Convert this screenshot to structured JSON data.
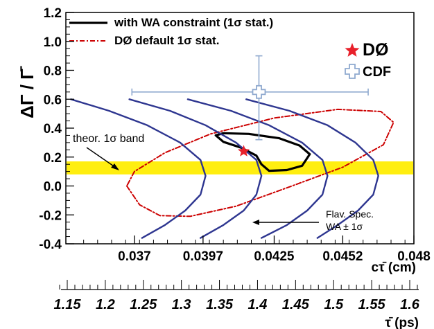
{
  "chart_data": {
    "type": "line",
    "x_axis": {
      "label": "cτ̄ (cm)",
      "range": [
        0.0343,
        0.048
      ],
      "ticks": [
        "0.037",
        "0.0397",
        "0.0425",
        "0.0452",
        "0.048"
      ],
      "tick_values": [
        0.037,
        0.0397,
        0.0425,
        0.0452,
        0.048
      ]
    },
    "secondary_x_axis": {
      "label": "τ̄ (ps)",
      "ticks": [
        "1.15",
        "1.2",
        "1.25",
        "1.3",
        "1.35",
        "1.4",
        "1.45",
        "1.5",
        "1.55",
        "1.6"
      ],
      "tick_values": [
        1.15,
        1.2,
        1.25,
        1.3,
        1.35,
        1.4,
        1.45,
        1.5,
        1.55,
        1.6
      ]
    },
    "y_axis": {
      "label": "ΔΓ / Γ̄",
      "range": [
        -0.4,
        1.2
      ],
      "ticks": [
        "-0.4",
        "-0.2",
        "0.0",
        "0.2",
        "0.4",
        "0.6",
        "0.8",
        "1.0",
        "1.2"
      ],
      "tick_values": [
        -0.4,
        -0.2,
        0.0,
        0.2,
        0.4,
        0.6,
        0.8,
        1.0,
        1.2
      ]
    },
    "legend": {
      "placement": "top-left",
      "entries": [
        {
          "label": "with WA constraint (1σ stat.)",
          "color": "#000000",
          "style": "solid"
        },
        {
          "label": "DØ default 1σ stat.",
          "color": "#cc0000",
          "style": "dash-dot"
        }
      ]
    },
    "markers": [
      {
        "label": "DØ",
        "symbol": "star",
        "color": "#e8202a",
        "x": 0.0413,
        "y": 0.24
      },
      {
        "label": "CDF",
        "symbol": "open-cross",
        "color": "#8fa9cf",
        "x": 0.0419,
        "y": 0.65,
        "x_err": [
          0.0369,
          0.0462
        ],
        "y_err": [
          0.32,
          0.9
        ]
      }
    ],
    "theory_band": {
      "label": "theor. 1σ band",
      "y_range": [
        0.08,
        0.17
      ],
      "color": "#ffee10"
    },
    "flavor_spec_annotation": [
      "Flav. Spec.",
      "WA ± 1σ"
    ],
    "series": [
      {
        "name": "with WA constraint (1σ stat.)",
        "color": "#000000",
        "points": [
          [
            0.0402,
            0.35
          ],
          [
            0.0405,
            0.305
          ],
          [
            0.0412,
            0.265
          ],
          [
            0.0418,
            0.21
          ],
          [
            0.042,
            0.15
          ],
          [
            0.0423,
            0.105
          ],
          [
            0.043,
            0.11
          ],
          [
            0.0436,
            0.14
          ],
          [
            0.0439,
            0.22
          ],
          [
            0.0435,
            0.28
          ],
          [
            0.0427,
            0.33
          ],
          [
            0.0415,
            0.36
          ],
          [
            0.0405,
            0.365
          ],
          [
            0.0402,
            0.35
          ]
        ]
      },
      {
        "name": "DØ default 1σ stat.",
        "color": "#cc0000",
        "points": [
          [
            0.0367,
            0.0
          ],
          [
            0.0372,
            -0.13
          ],
          [
            0.038,
            -0.205
          ],
          [
            0.0392,
            -0.21
          ],
          [
            0.041,
            -0.14
          ],
          [
            0.0432,
            0.0
          ],
          [
            0.0452,
            0.13
          ],
          [
            0.0468,
            0.285
          ],
          [
            0.0472,
            0.44
          ],
          [
            0.0467,
            0.515
          ],
          [
            0.045,
            0.53
          ],
          [
            0.0425,
            0.47
          ],
          [
            0.04,
            0.36
          ],
          [
            0.0382,
            0.23
          ],
          [
            0.037,
            0.1
          ],
          [
            0.0367,
            0.0
          ]
        ]
      },
      {
        "name": "",
        "color": "#2e3690",
        "points": [
          [
            0.0345,
            0.6
          ],
          [
            0.036,
            0.52
          ],
          [
            0.0375,
            0.42
          ],
          [
            0.0388,
            0.3
          ],
          [
            0.0396,
            0.18
          ],
          [
            0.0398,
            0.07
          ],
          [
            0.0396,
            -0.06
          ],
          [
            0.039,
            -0.17
          ],
          [
            0.0382,
            -0.27
          ],
          [
            0.0373,
            -0.36
          ]
        ]
      },
      {
        "name": "",
        "color": "#2e3690",
        "points": [
          [
            0.0368,
            0.6
          ],
          [
            0.0384,
            0.52
          ],
          [
            0.0398,
            0.42
          ],
          [
            0.041,
            0.3
          ],
          [
            0.0418,
            0.18
          ],
          [
            0.042,
            0.07
          ],
          [
            0.0418,
            -0.06
          ],
          [
            0.0413,
            -0.17
          ],
          [
            0.0405,
            -0.27
          ],
          [
            0.0396,
            -0.36
          ]
        ]
      },
      {
        "name": "",
        "color": "#2e3690",
        "points": [
          [
            0.0391,
            0.6
          ],
          [
            0.0408,
            0.52
          ],
          [
            0.0423,
            0.42
          ],
          [
            0.0436,
            0.3
          ],
          [
            0.0444,
            0.18
          ],
          [
            0.0446,
            0.07
          ],
          [
            0.0444,
            -0.06
          ],
          [
            0.0438,
            -0.17
          ],
          [
            0.043,
            -0.27
          ],
          [
            0.042,
            -0.36
          ]
        ]
      },
      {
        "name": "",
        "color": "#2e3690",
        "points": [
          [
            0.0414,
            0.6
          ],
          [
            0.0431,
            0.52
          ],
          [
            0.0446,
            0.42
          ],
          [
            0.0457,
            0.3
          ],
          [
            0.0464,
            0.18
          ],
          [
            0.0466,
            0.07
          ],
          [
            0.0464,
            -0.06
          ],
          [
            0.0458,
            -0.17
          ],
          [
            0.045,
            -0.27
          ],
          [
            0.0442,
            -0.36
          ]
        ]
      }
    ]
  },
  "labels": {
    "y_axis": "ΔΓ / Γ̄",
    "x_axis": "cτ̄ (cm)",
    "secondary_x_axis": "τ̄ (ps)",
    "theory_band": "theor. 1σ band",
    "dzero": "DØ",
    "cdf": "CDF",
    "flav_spec_line1": "Flav. Spec.",
    "flav_spec_line2": "WA ± 1σ",
    "legend_wa": "with WA constraint (1σ stat.)",
    "legend_d0": "DØ default 1σ stat."
  }
}
